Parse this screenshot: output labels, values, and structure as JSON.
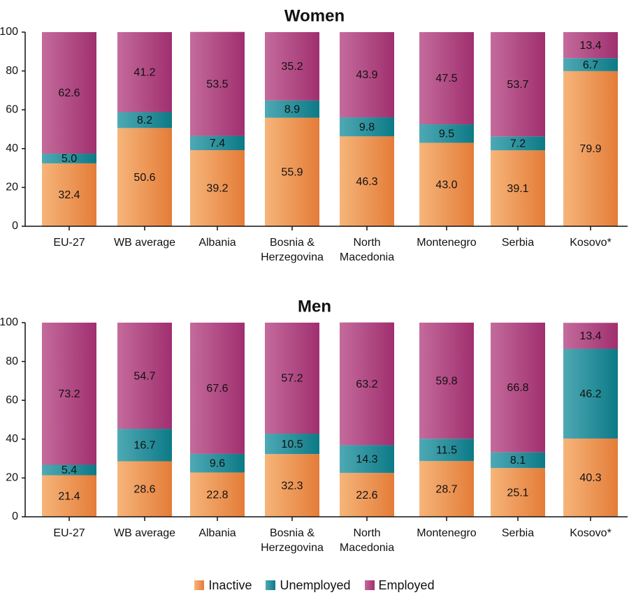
{
  "colors": {
    "inactive": "#ee8f4f",
    "unemployed": "#1a8f9c",
    "employed": "#b0457f",
    "axis": "#111111"
  },
  "legend": [
    {
      "name": "Inactive",
      "color_key": "inactive"
    },
    {
      "name": "Unemployed",
      "color_key": "unemployed"
    },
    {
      "name": "Employed",
      "color_key": "employed"
    }
  ],
  "chart_data": [
    {
      "type": "bar",
      "stacked": true,
      "title": "Women",
      "ylim": [
        0,
        100
      ],
      "yticks": [
        0,
        20,
        40,
        60,
        80,
        100
      ],
      "categories": [
        [
          "EU-27"
        ],
        [
          "WB average"
        ],
        [
          "Albania"
        ],
        [
          "Bosnia &",
          "Herzegovina"
        ],
        [
          "North",
          "Macedonia"
        ],
        [
          "Montenegro"
        ],
        [
          "Serbia"
        ],
        [
          "Kosovo*"
        ]
      ],
      "series": [
        {
          "name": "Inactive",
          "values": [
            32.4,
            50.6,
            39.2,
            55.9,
            46.3,
            43.0,
            39.1,
            79.9
          ]
        },
        {
          "name": "Unemployed",
          "values": [
            5.0,
            8.2,
            7.4,
            8.9,
            9.8,
            9.5,
            7.2,
            6.7
          ]
        },
        {
          "name": "Employed",
          "values": [
            62.6,
            41.2,
            53.5,
            35.2,
            43.9,
            47.5,
            53.7,
            13.4
          ]
        }
      ],
      "labels": [
        [
          "32.4",
          "50.6",
          "39.2",
          "55.9",
          "46.3",
          "43.0",
          "39.1",
          "79.9"
        ],
        [
          "5.0",
          "8.2",
          "7.4",
          "8.9",
          "9.8",
          "9.5",
          "7.2",
          "6.7"
        ],
        [
          "62.6",
          "41.2",
          "53.5",
          "35.2",
          "43.9",
          "47.5",
          "53.7",
          "13.4"
        ]
      ],
      "legend": "bottom"
    },
    {
      "type": "bar",
      "stacked": true,
      "title": "Men",
      "ylim": [
        0,
        100
      ],
      "yticks": [
        0,
        20,
        40,
        60,
        80,
        100
      ],
      "categories": [
        [
          "EU-27"
        ],
        [
          "WB average"
        ],
        [
          "Albania"
        ],
        [
          "Bosnia &",
          "Herzegovina"
        ],
        [
          "North",
          "Macedonia"
        ],
        [
          "Montenegro"
        ],
        [
          "Serbia"
        ],
        [
          "Kosovo*"
        ]
      ],
      "series": [
        {
          "name": "Inactive",
          "values": [
            21.4,
            28.6,
            22.8,
            32.3,
            22.6,
            28.7,
            25.1,
            40.3
          ]
        },
        {
          "name": "Unemployed",
          "values": [
            5.4,
            16.7,
            9.6,
            10.5,
            14.3,
            11.5,
            8.1,
            46.2
          ]
        },
        {
          "name": "Employed",
          "values": [
            73.2,
            54.7,
            67.6,
            57.2,
            63.2,
            59.8,
            66.8,
            13.4
          ]
        }
      ],
      "labels": [
        [
          "21.4",
          "28.6",
          "22.8",
          "32.3",
          "22.6",
          "28.7",
          "25.1",
          "40.3"
        ],
        [
          "5.4",
          "16.7",
          "9.6",
          "10.5",
          "14.3",
          "11.5",
          "8.1",
          "46.2"
        ],
        [
          "73.2",
          "54.7",
          "67.6",
          "57.2",
          "63.2",
          "59.8",
          "66.8",
          "13.4"
        ]
      ],
      "legend": "bottom"
    }
  ]
}
